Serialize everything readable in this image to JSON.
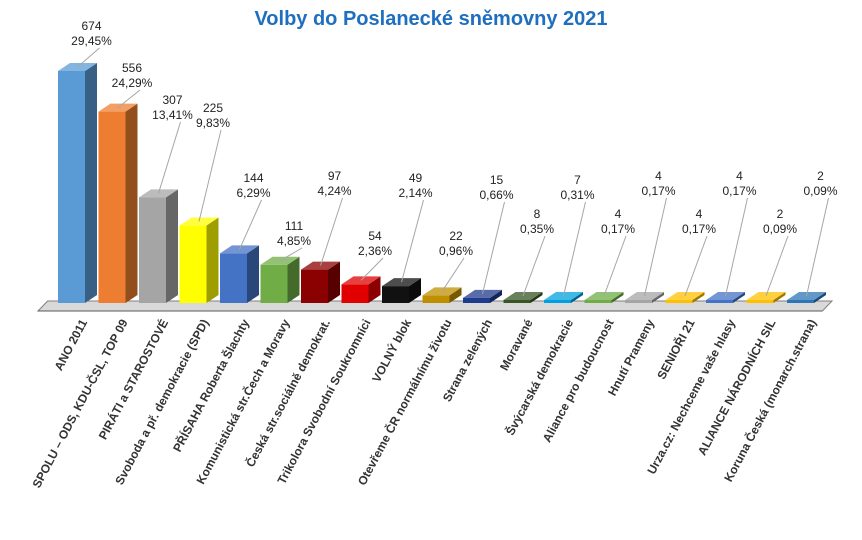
{
  "chart_data": {
    "type": "bar",
    "title": "Volby do Poslanecké sněmovny 2021",
    "xlabel": "",
    "ylabel": "",
    "categories": [
      "ANO 2011",
      "SPOLU – ODS, KDU-ČSL, TOP 09",
      "PIRÁTI a STAROSTOVÉ",
      "Svoboda a př. demokracie (SPD)",
      "PŘÍSAHA Roberta Šlachty",
      "Komunistická str.Čech a Moravy",
      "Česká str.sociálně demokrat.",
      "Trikolora Svobodní Soukromníci",
      "VOLNÝ blok",
      "Otevřeme ČR normálnímu životu",
      "Strana zelených",
      "Moravané",
      "Švýcarská demokracie",
      "Aliance pro budoucnost",
      "Hnutí Prameny",
      "SENIOŘI 21",
      "Urza.cz: Nechceme vaše hlasy",
      "ALIANCE NÁRODNÍCH SIL",
      "Koruna Česká (monarch.strana)"
    ],
    "values": [
      674,
      556,
      307,
      225,
      144,
      111,
      97,
      54,
      49,
      22,
      15,
      8,
      7,
      4,
      4,
      4,
      4,
      2,
      2
    ],
    "percent_labels": [
      "29,45%",
      "24,29%",
      "13,41%",
      "9,83%",
      "6,29%",
      "4,85%",
      "4,24%",
      "2,36%",
      "2,14%",
      "0,96%",
      "0,66%",
      "0,35%",
      "0,31%",
      "0,17%",
      "0,17%",
      "0,17%",
      "0,17%",
      "0,09%",
      "0,09%"
    ],
    "colors": [
      "#5b9bd5",
      "#ed7d31",
      "#a5a5a5",
      "#ffff00",
      "#4472c4",
      "#70ad47",
      "#8b0000",
      "#e00000",
      "#111111",
      "#bf8f00",
      "#1f3b8c",
      "#375623",
      "#00a0e0",
      "#70ad47",
      "#a5a5a5",
      "#ffc000",
      "#4472c4",
      "#ffc000",
      "#2e75b6"
    ],
    "ylim": [
      0,
      674
    ],
    "grid": false,
    "legend": "none",
    "style": "3d-bar"
  }
}
